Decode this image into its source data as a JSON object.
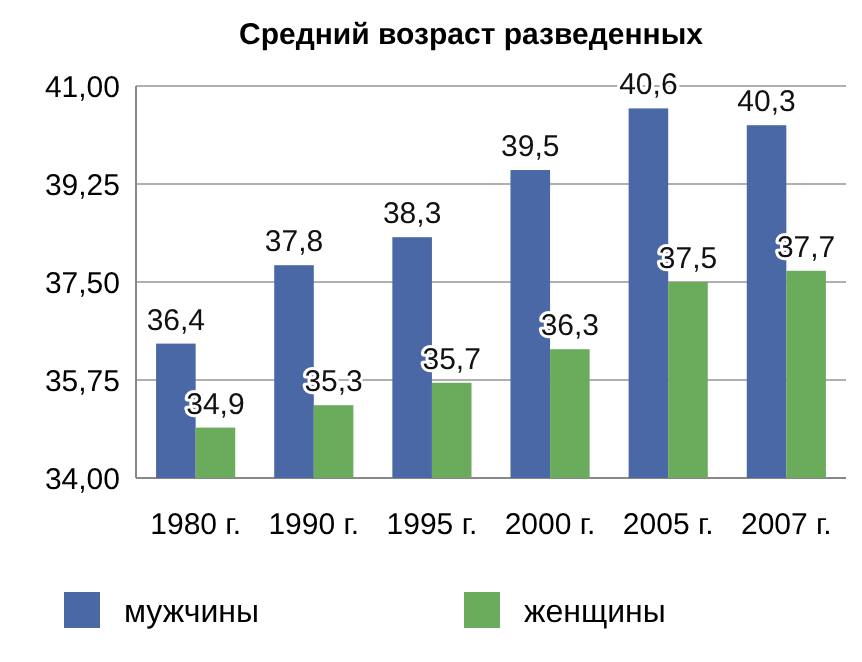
{
  "chart_data": {
    "type": "bar",
    "title": "Средний возраст разведенных",
    "categories": [
      "1980 г.",
      "1990 г.",
      "1995 г.",
      "2000 г.",
      "2005 г.",
      "2007 г."
    ],
    "series": [
      {
        "name": "мужчины",
        "color": "#4a67a6",
        "values": [
          36.4,
          37.8,
          38.3,
          39.5,
          40.6,
          40.3
        ],
        "value_labels": [
          "36,4",
          "37,8",
          "38,3",
          "39,5",
          "40,6",
          "40,3"
        ]
      },
      {
        "name": "женщины",
        "color": "#6aab5c",
        "values": [
          34.9,
          35.3,
          35.7,
          36.3,
          37.5,
          37.7
        ],
        "value_labels": [
          "34,9",
          "35,3",
          "35,7",
          "36,3",
          "37,5",
          "37,7"
        ]
      }
    ],
    "ylim": [
      34,
      41
    ],
    "yticks": [
      {
        "value": 34,
        "label": "34,00"
      },
      {
        "value": 35.75,
        "label": "35,75"
      },
      {
        "value": 37.5,
        "label": "37,50"
      },
      {
        "value": 39.25,
        "label": "39,25"
      },
      {
        "value": 41,
        "label": "41,00"
      }
    ],
    "grid": "y",
    "legend": "bottom"
  }
}
